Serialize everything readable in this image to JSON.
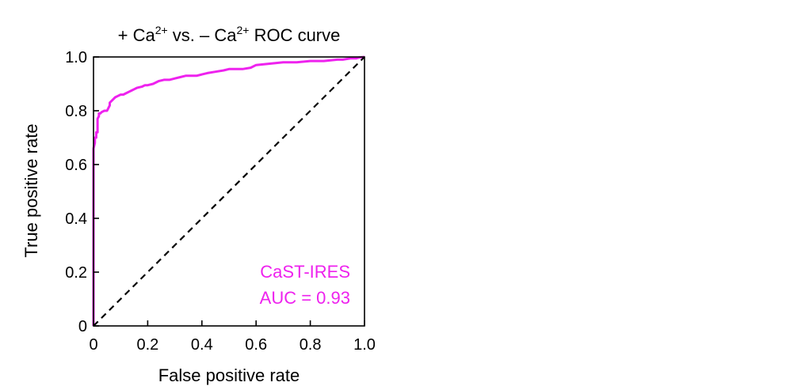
{
  "chart_data": {
    "type": "line",
    "title": {
      "parts": [
        {
          "text": "+ Ca",
          "sup": false
        },
        {
          "text": "2+",
          "sup": true
        },
        {
          "text": " vs. – Ca",
          "sup": false
        },
        {
          "text": "2+",
          "sup": true
        },
        {
          "text": " ROC curve",
          "sup": false
        }
      ]
    },
    "xlabel": "False positive rate",
    "ylabel": "True positive rate",
    "xlim": [
      0,
      1
    ],
    "ylim": [
      0,
      1
    ],
    "x_ticks": [
      {
        "value": 0,
        "label": "0"
      },
      {
        "value": 0.2,
        "label": "0.2"
      },
      {
        "value": 0.4,
        "label": "0.4"
      },
      {
        "value": 0.6,
        "label": "0.6"
      },
      {
        "value": 0.8,
        "label": "0.8"
      },
      {
        "value": 1.0,
        "label": "1.0"
      }
    ],
    "y_ticks": [
      {
        "value": 0,
        "label": "0"
      },
      {
        "value": 0.2,
        "label": "0.2"
      },
      {
        "value": 0.4,
        "label": "0.4"
      },
      {
        "value": 0.6,
        "label": "0.6"
      },
      {
        "value": 0.8,
        "label": "0.8"
      },
      {
        "value": 1.0,
        "label": "1.0"
      }
    ],
    "grid": false,
    "series": [
      {
        "name": "CaST-IRES",
        "color": "#ee22ee",
        "x": [
          0,
          0,
          0.005,
          0.005,
          0.01,
          0.01,
          0.015,
          0.015,
          0.02,
          0.02,
          0.025,
          0.03,
          0.04,
          0.05,
          0.06,
          0.06,
          0.07,
          0.08,
          0.09,
          0.1,
          0.11,
          0.12,
          0.13,
          0.14,
          0.15,
          0.16,
          0.18,
          0.19,
          0.2,
          0.22,
          0.24,
          0.26,
          0.28,
          0.3,
          0.32,
          0.34,
          0.36,
          0.38,
          0.4,
          0.42,
          0.45,
          0.48,
          0.5,
          0.55,
          0.58,
          0.6,
          0.65,
          0.7,
          0.75,
          0.8,
          0.85,
          0.9,
          0.92,
          0.95,
          0.97,
          0.98,
          1.0
        ],
        "y": [
          0,
          0.66,
          0.68,
          0.7,
          0.7,
          0.72,
          0.72,
          0.77,
          0.78,
          0.79,
          0.79,
          0.795,
          0.8,
          0.8,
          0.82,
          0.83,
          0.84,
          0.85,
          0.855,
          0.86,
          0.86,
          0.865,
          0.87,
          0.875,
          0.88,
          0.885,
          0.89,
          0.895,
          0.895,
          0.9,
          0.91,
          0.915,
          0.915,
          0.92,
          0.925,
          0.93,
          0.93,
          0.93,
          0.935,
          0.94,
          0.945,
          0.95,
          0.955,
          0.955,
          0.96,
          0.97,
          0.975,
          0.98,
          0.98,
          0.985,
          0.985,
          0.99,
          0.99,
          0.995,
          0.995,
          0.998,
          1.0
        ]
      },
      {
        "color": "#000000",
        "style": "dashed",
        "x": [
          0,
          1
        ],
        "y": [
          0,
          1
        ]
      }
    ],
    "annotations": [
      {
        "text": "CaST-IRES",
        "color": "#ee22ee"
      },
      {
        "text": "AUC = 0.93",
        "color": "#ee22ee"
      }
    ]
  }
}
